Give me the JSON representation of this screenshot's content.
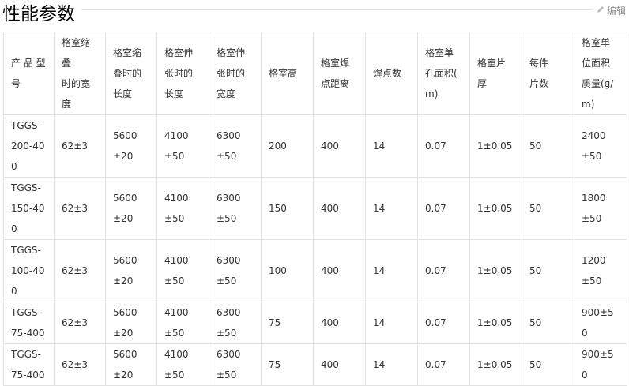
{
  "title": "性能参数",
  "edit_label": "编辑",
  "headers": [
    "产 品 型\n号",
    "格室缩\n叠\n时的宽\n度",
    "格室缩\n叠时的\n长度",
    "格室伸\n张时的\n长度",
    "格室伸\n张时的\n宽度",
    "格室高",
    "格室焊\n点距离",
    "焊点数",
    "格室单\n孔面积(\nm)",
    "格室片\n厚",
    "每件\n片数",
    "格室单\n位面积\n质量(g/\nm)"
  ],
  "rows": [
    [
      "TGGS-200-400",
      "62±3",
      "5600±20",
      "4100±50",
      "6300±50",
      "200",
      "400",
      "14",
      "0.07",
      "1±0.05",
      "50",
      "2400±50"
    ],
    [
      "TGGS-150-400",
      "62±3",
      "5600±20",
      "4100±50",
      "6300±50",
      "150",
      "400",
      "14",
      "0.07",
      "1±0.05",
      "50",
      "1800±50"
    ],
    [
      "TGGS-100-400",
      "62±3",
      "5600±20",
      "4100±50",
      "6300±50",
      "100",
      "400",
      "14",
      "0.07",
      "1±0.05",
      "50",
      "1200±50"
    ],
    [
      "TGGS-75-400",
      "62±3",
      "5600±20",
      "4100±50",
      "6300±50",
      "75",
      "400",
      "14",
      "0.07",
      "1±0.05",
      "50",
      "900±50"
    ],
    [
      "TGGS-75-400",
      "62±3",
      "5600±20",
      "4100±50",
      "6300±50",
      "75",
      "400",
      "14",
      "0.07",
      "1±0.05",
      "50",
      "900±50"
    ]
  ]
}
